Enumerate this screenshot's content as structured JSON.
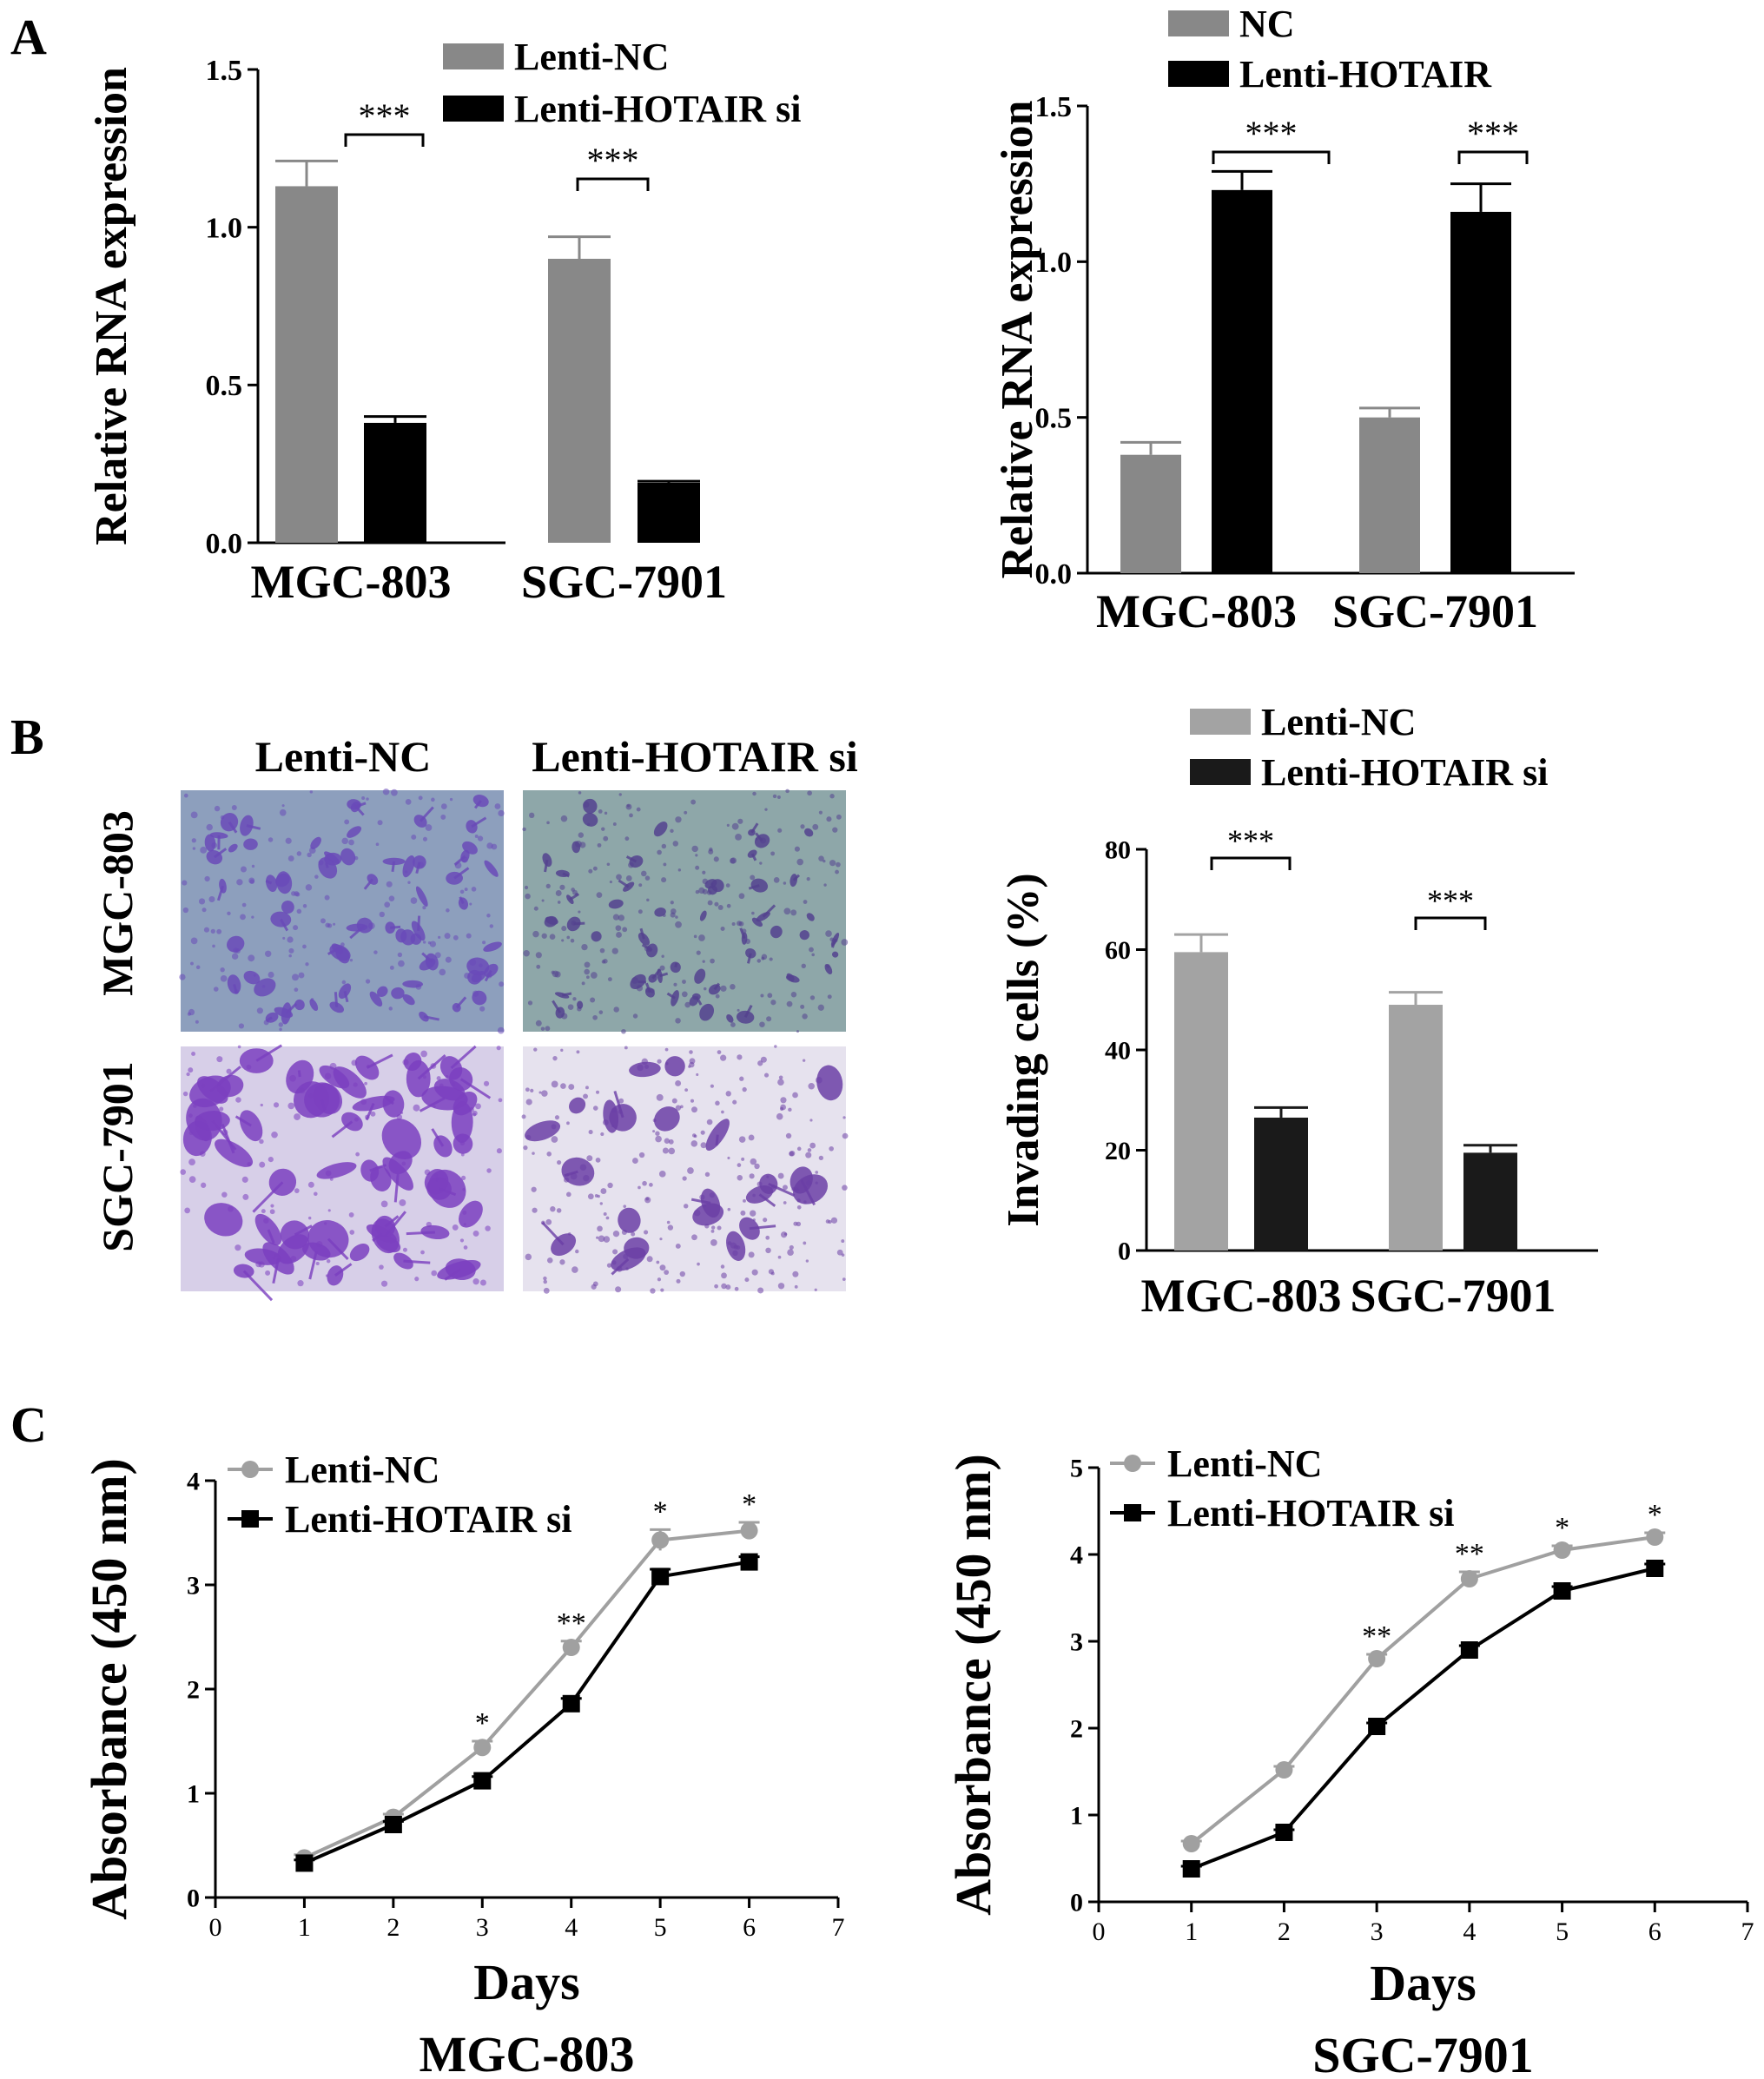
{
  "panel_labels": [
    "A",
    "B",
    "C"
  ],
  "micrograph_panel": {
    "column_labels": [
      "Lenti-NC",
      "Lenti-HOTAIR si"
    ],
    "row_labels": [
      "MGC-803",
      "SGC-7901"
    ]
  },
  "colors": {
    "nc_gray": "#888888",
    "nc_gray_light": "#a3a3a3",
    "black": "#000000",
    "line_gray": "#a0a0a0",
    "stain_purple": "#7b3fc0",
    "stain_bg_blue": "#8d9fbd",
    "stain_bg_light": "#e6e2ee"
  },
  "chart_data": [
    {
      "id": "A1",
      "type": "bar",
      "categories": [
        "MGC-803",
        "SGC-7901"
      ],
      "ylabel": "Relative RNA expression",
      "ylim": [
        0,
        1.5
      ],
      "yticks": [
        "0.0",
        "0.5",
        "1.0",
        "1.5"
      ],
      "legend_position": "top-right",
      "series": [
        {
          "name": "Lenti-NC",
          "values": [
            1.13,
            0.9
          ],
          "errors": [
            0.08,
            0.07
          ]
        },
        {
          "name": "Lenti-HOTAIR si",
          "values": [
            0.38,
            0.19
          ],
          "errors": [
            0.02,
            0.005
          ]
        }
      ],
      "annotations": [
        "***",
        "***"
      ]
    },
    {
      "id": "A2",
      "type": "bar",
      "categories": [
        "MGC-803",
        "SGC-7901"
      ],
      "ylabel": "Relative RNA expression",
      "ylim": [
        0,
        1.5
      ],
      "yticks": [
        "0.0",
        "0.5",
        "1.0",
        "1.5"
      ],
      "legend_position": "top-left",
      "series": [
        {
          "name": "NC",
          "values": [
            0.38,
            0.5
          ],
          "errors": [
            0.04,
            0.03
          ]
        },
        {
          "name": "Lenti-HOTAIR",
          "values": [
            1.23,
            1.16
          ],
          "errors": [
            0.06,
            0.09
          ]
        }
      ],
      "annotations": [
        "***",
        "***"
      ]
    },
    {
      "id": "B",
      "type": "bar",
      "categories": [
        "MGC-803",
        "SGC-7901"
      ],
      "ylabel": "Invading cells (%)",
      "ylim": [
        0,
        80
      ],
      "yticks": [
        "0",
        "20",
        "40",
        "60",
        "80"
      ],
      "legend_position": "top",
      "series": [
        {
          "name": "Lenti-NC",
          "values": [
            59.5,
            49
          ],
          "errors": [
            3.5,
            2.5
          ]
        },
        {
          "name": "Lenti-HOTAIR si",
          "values": [
            26.5,
            19.5
          ],
          "errors": [
            2,
            1.5
          ]
        }
      ],
      "annotations": [
        "***",
        "***"
      ]
    },
    {
      "id": "C1",
      "type": "line",
      "title": "MGC-803",
      "xlabel": "Days",
      "ylabel": "Absorbance (450 nm)",
      "xlim": [
        0,
        7
      ],
      "ylim": [
        0,
        4
      ],
      "xticks": [
        "0",
        "1",
        "2",
        "3",
        "4",
        "5",
        "6",
        "7"
      ],
      "yticks": [
        "0",
        "1",
        "2",
        "3",
        "4"
      ],
      "x": [
        1,
        2,
        3,
        4,
        5,
        6
      ],
      "legend_position": "top-left",
      "series": [
        {
          "name": "Lenti-NC",
          "values": [
            0.38,
            0.77,
            1.44,
            2.4,
            3.43,
            3.52
          ],
          "errors": [
            0.03,
            0.03,
            0.06,
            0.06,
            0.1,
            0.08
          ]
        },
        {
          "name": "Lenti-HOTAIR si",
          "values": [
            0.33,
            0.7,
            1.12,
            1.86,
            3.08,
            3.22
          ],
          "errors": [
            0.03,
            0.03,
            0.04,
            0.05,
            0.07,
            0.05
          ]
        }
      ],
      "annotations": [
        {
          "x": 3,
          "text": "*"
        },
        {
          "x": 4,
          "text": "**"
        },
        {
          "x": 5,
          "text": "*"
        },
        {
          "x": 6,
          "text": "*"
        }
      ]
    },
    {
      "id": "C2",
      "type": "line",
      "title": "SGC-7901",
      "xlabel": "Days",
      "ylabel": "Absorbance (450 nm)",
      "xlim": [
        0,
        7
      ],
      "ylim": [
        0,
        5
      ],
      "xticks": [
        "0",
        "1",
        "2",
        "3",
        "4",
        "5",
        "6",
        "7"
      ],
      "yticks": [
        "0",
        "1",
        "2",
        "3",
        "4",
        "5"
      ],
      "x": [
        1,
        2,
        3,
        4,
        5,
        6
      ],
      "legend_position": "top-left",
      "series": [
        {
          "name": "Lenti-NC",
          "values": [
            0.67,
            1.52,
            2.8,
            3.72,
            4.05,
            4.2
          ],
          "errors": [
            0.03,
            0.04,
            0.05,
            0.08,
            0.05,
            0.05
          ]
        },
        {
          "name": "Lenti-HOTAIR si",
          "values": [
            0.38,
            0.8,
            2.02,
            2.9,
            3.58,
            3.84
          ],
          "errors": [
            0.03,
            0.03,
            0.04,
            0.05,
            0.05,
            0.05
          ]
        }
      ],
      "annotations": [
        {
          "x": 3,
          "text": "**"
        },
        {
          "x": 4,
          "text": "**"
        },
        {
          "x": 5,
          "text": "*"
        },
        {
          "x": 6,
          "text": "*"
        }
      ]
    }
  ]
}
